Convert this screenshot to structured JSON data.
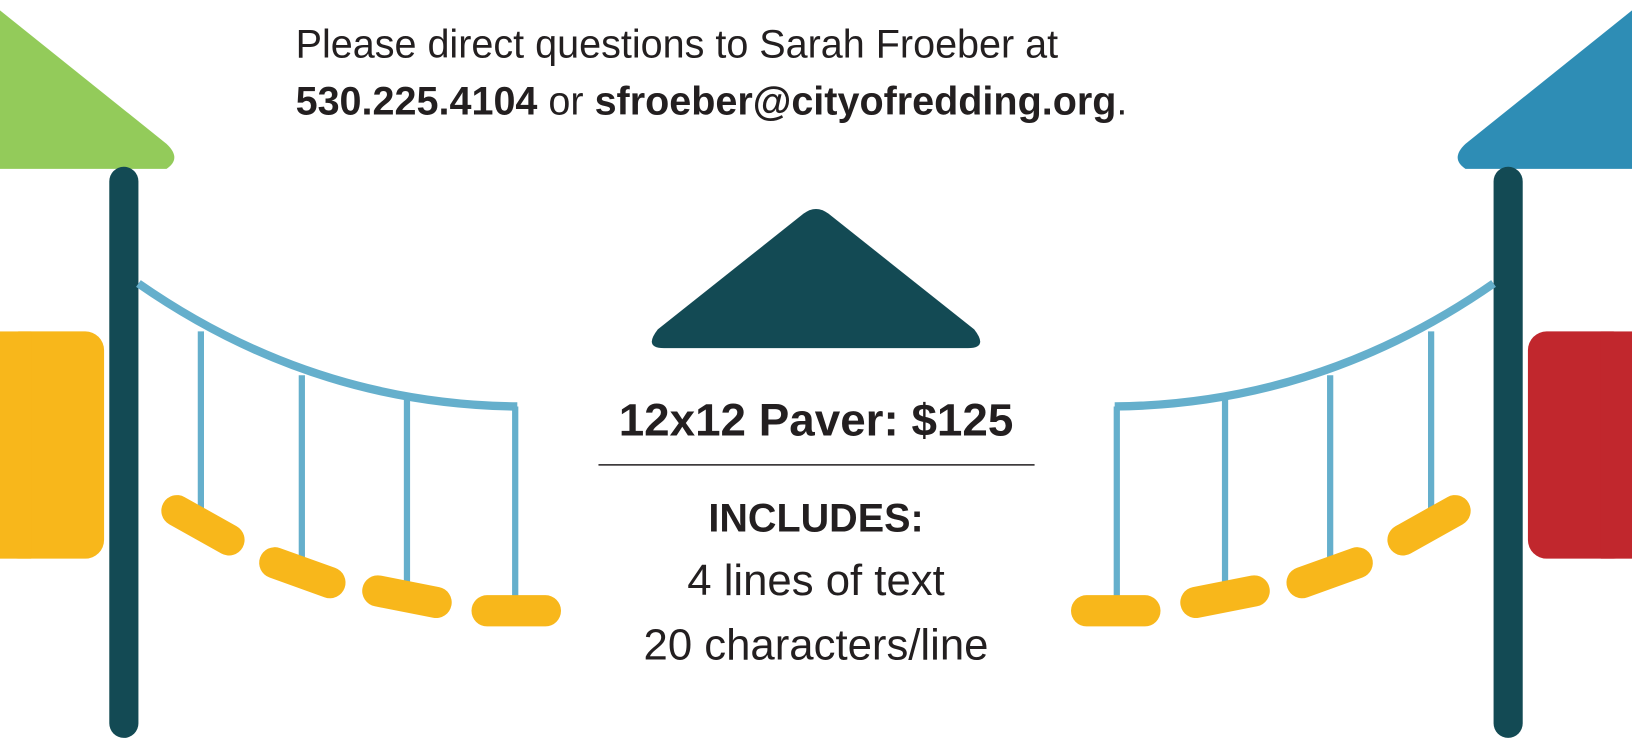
{
  "contact": {
    "line1": "Please direct questions to Sarah Froeber at",
    "phone": "530.225.4104",
    "connector": "or",
    "email": "sfroeber@cityofredding.org",
    "period": "."
  },
  "offer": {
    "title": "12x12 Paver: $125",
    "includes_heading": "INCLUDES:",
    "items": [
      "4 lines of text",
      "20 characters/line"
    ]
  }
}
